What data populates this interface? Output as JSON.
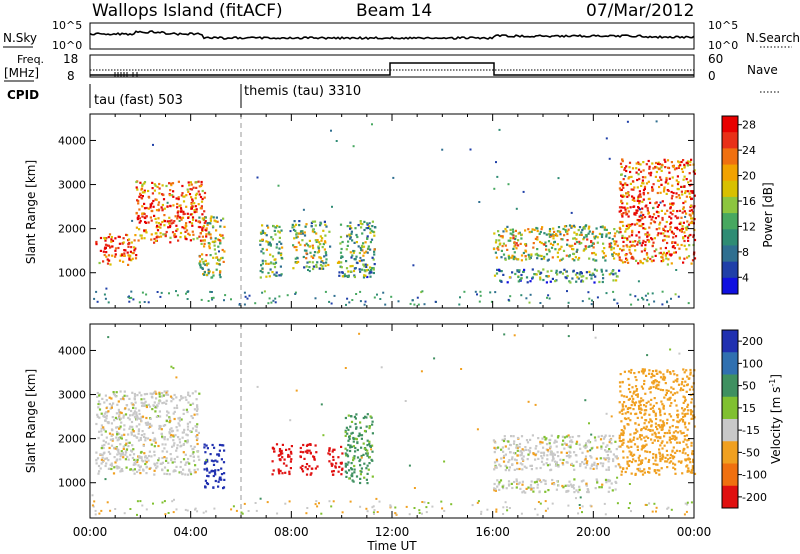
{
  "header": {
    "site": "Wallops Island (fitACF)",
    "beam": "Beam 14",
    "date": "07/Mar/2012"
  },
  "summary_panels": {
    "nsky_label": "N.Sky",
    "nsearch_label": "N.Search",
    "left_ticks": [
      "10^5",
      "10^0"
    ],
    "right_ticks": [
      "10^5",
      "10^0"
    ],
    "freq_label_line1": "Freq.",
    "freq_label_line2": "[MHz]",
    "freq_ticks": [
      "18",
      "8"
    ],
    "nave_label": "Nave",
    "nave_ticks": [
      "60",
      "0"
    ],
    "cpid_label": "CPID",
    "cpid_segments": [
      {
        "label": "tau (fast) 503",
        "start_hour": 0
      },
      {
        "label": "themis (tau) 3310",
        "start_hour": 6
      }
    ]
  },
  "chart_data": [
    {
      "type": "heatmap",
      "title": "Power",
      "ylabel": "Slant Range [km]",
      "y_ticks": [
        "1000",
        "2000",
        "3000",
        "4000"
      ],
      "ylim": [
        200,
        4600
      ],
      "xlim_hours": [
        0,
        24
      ],
      "colorbar_label": "Power [dB]",
      "colorbar_ticks": [
        "4",
        "8",
        "12",
        "16",
        "20",
        "24",
        "28"
      ],
      "colorscale": [
        "#1010e0",
        "#1f3fa8",
        "#2f6f90",
        "#2f8c74",
        "#47a860",
        "#8cc63f",
        "#d8c000",
        "#f2a200",
        "#f07010",
        "#e83018",
        "#e80000"
      ],
      "echo_regions": [
        {
          "t0": 0.2,
          "t1": 1.8,
          "r0": 1200,
          "r1": 1900,
          "value": 22
        },
        {
          "t0": 1.8,
          "t1": 4.6,
          "r0": 1700,
          "r1": 3100,
          "value": 22
        },
        {
          "t0": 4.3,
          "t1": 5.3,
          "r0": 900,
          "r1": 2300,
          "value": 14
        },
        {
          "t0": 6.7,
          "t1": 7.6,
          "r0": 900,
          "r1": 2100,
          "value": 12
        },
        {
          "t0": 8.0,
          "t1": 9.5,
          "r0": 1100,
          "r1": 2200,
          "value": 12
        },
        {
          "t0": 9.8,
          "t1": 11.3,
          "r0": 900,
          "r1": 2200,
          "value": 10
        },
        {
          "t0": 16.0,
          "t1": 21.0,
          "r0": 1300,
          "r1": 2100,
          "value": 14
        },
        {
          "t0": 16.0,
          "t1": 21.0,
          "r0": 800,
          "r1": 1100,
          "value": 8
        },
        {
          "t0": 21.0,
          "t1": 24.0,
          "r0": 1200,
          "r1": 3600,
          "value": 22
        }
      ]
    },
    {
      "type": "heatmap",
      "title": "Velocity",
      "ylabel": "Slant Range [km]",
      "y_ticks": [
        "1000",
        "2000",
        "3000",
        "4000"
      ],
      "ylim": [
        200,
        4600
      ],
      "xlim_hours": [
        0,
        24
      ],
      "xlabel": "Time UT",
      "x_ticks": [
        "00:00",
        "04:00",
        "08:00",
        "12:00",
        "16:00",
        "20:00",
        "00:00"
      ],
      "colorbar_label_main": "Velocity",
      "colorbar_label_unit": "[m s",
      "colorbar_label_exp": "-1",
      "colorbar_label_end": "]",
      "colorbar_ticks": [
        "200",
        "100",
        "50",
        "15",
        "-15",
        "-50",
        "-100",
        "-200"
      ],
      "colorscale": [
        "#2030b0",
        "#3070b0",
        "#3f9060",
        "#80c030",
        "#c8c8c8",
        "#f0a020",
        "#f07010",
        "#e01010"
      ],
      "echo_regions": [
        {
          "t0": 0.2,
          "t1": 4.3,
          "r0": 1200,
          "r1": 3100,
          "value": 0
        },
        {
          "t0": 4.5,
          "t1": 5.3,
          "r0": 900,
          "r1": 1900,
          "value": 220
        },
        {
          "t0": 7.2,
          "t1": 8.0,
          "r0": 1200,
          "r1": 1900,
          "value": -220
        },
        {
          "t0": 8.3,
          "t1": 9.0,
          "r0": 1200,
          "r1": 1900,
          "value": -220
        },
        {
          "t0": 9.4,
          "t1": 10.0,
          "r0": 1200,
          "r1": 1900,
          "value": -220
        },
        {
          "t0": 10.1,
          "t1": 11.2,
          "r0": 1000,
          "r1": 2600,
          "value": 40
        },
        {
          "t0": 16.0,
          "t1": 21.0,
          "r0": 1300,
          "r1": 2100,
          "value": 0
        },
        {
          "t0": 16.0,
          "t1": 21.0,
          "r0": 800,
          "r1": 1100,
          "value": 0
        },
        {
          "t0": 21.0,
          "t1": 24.0,
          "r0": 1200,
          "r1": 3600,
          "value": -40
        }
      ]
    }
  ]
}
